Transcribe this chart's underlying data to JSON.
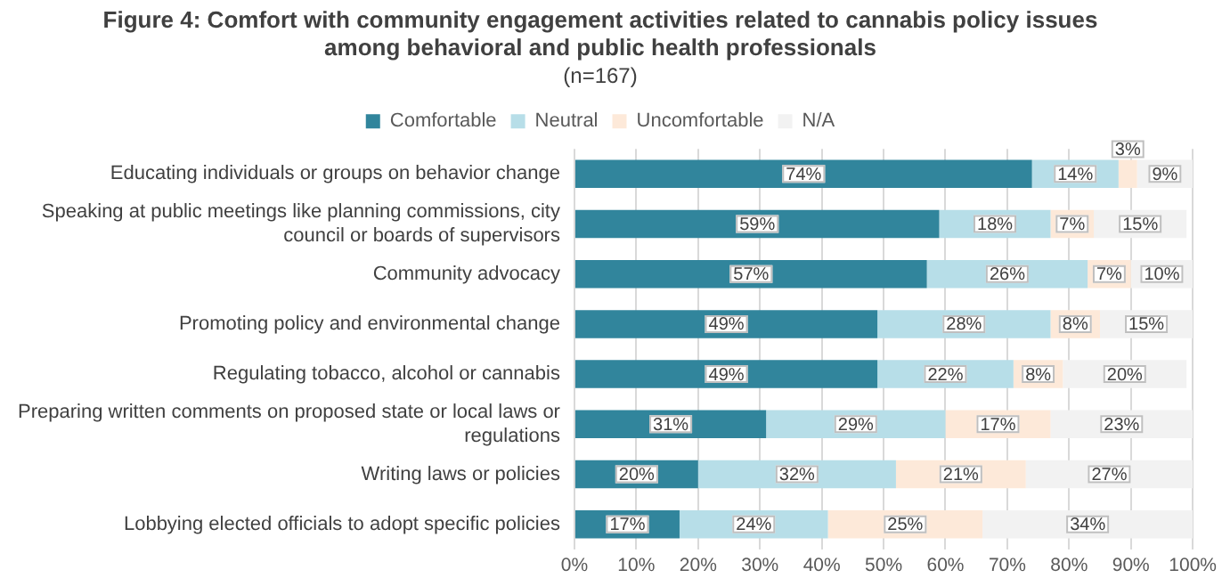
{
  "chart_data": {
    "type": "bar",
    "orientation": "horizontal",
    "stacked": true,
    "title": "Figure 4: Comfort with community engagement activities related to cannabis policy issues among behavioral and public health professionals",
    "subtitle": "(n=167)",
    "categories": [
      "Educating individuals or groups on behavior change",
      "Speaking at public meetings like planning commissions, city council or boards of supervisors",
      "Community advocacy",
      "Promoting policy and environmental change",
      "Regulating tobacco, alcohol or cannabis",
      "Preparing written comments on proposed state or local laws or regulations",
      "Writing laws or policies",
      "Lobbying elected officials to adopt specific policies"
    ],
    "series": [
      {
        "name": "Comfortable",
        "color": "#31859c",
        "values": [
          74,
          59,
          57,
          49,
          49,
          31,
          20,
          17
        ],
        "value_labels": [
          "74%",
          "59%",
          "57%",
          "49%",
          "49%",
          "31%",
          "20%",
          "17%"
        ]
      },
      {
        "name": "Neutral",
        "color": "#b7dee8",
        "values": [
          14,
          18,
          26,
          28,
          22,
          29,
          32,
          24
        ],
        "value_labels": [
          "14%",
          "18%",
          "26%",
          "28%",
          "22%",
          "29%",
          "32%",
          "24%"
        ]
      },
      {
        "name": "Uncomfortable",
        "color": "#fde9d9",
        "values": [
          3,
          7,
          7,
          8,
          8,
          17,
          21,
          25
        ],
        "value_labels": [
          "3%",
          "7%",
          "7%",
          "8%",
          "8%",
          "17%",
          "21%",
          "25%"
        ]
      },
      {
        "name": "N/A",
        "color": "#f2f2f2",
        "values": [
          9,
          15,
          10,
          15,
          20,
          23,
          27,
          34
        ],
        "value_labels": [
          "9%",
          "15%",
          "10%",
          "15%",
          "20%",
          "23%",
          "27%",
          "34%"
        ]
      }
    ],
    "xlim": [
      0,
      100
    ],
    "xticks": [
      {
        "value": 0,
        "label": "0%"
      },
      {
        "value": 10,
        "label": "10%"
      },
      {
        "value": 20,
        "label": "20%"
      },
      {
        "value": 30,
        "label": "30%"
      },
      {
        "value": 40,
        "label": "40%"
      },
      {
        "value": 50,
        "label": "50%"
      },
      {
        "value": 60,
        "label": "60%"
      },
      {
        "value": 70,
        "label": "70%"
      },
      {
        "value": 80,
        "label": "80%"
      },
      {
        "value": 90,
        "label": "90%"
      },
      {
        "value": 100,
        "label": "100%"
      }
    ],
    "grid": "x",
    "legend": "top"
  }
}
